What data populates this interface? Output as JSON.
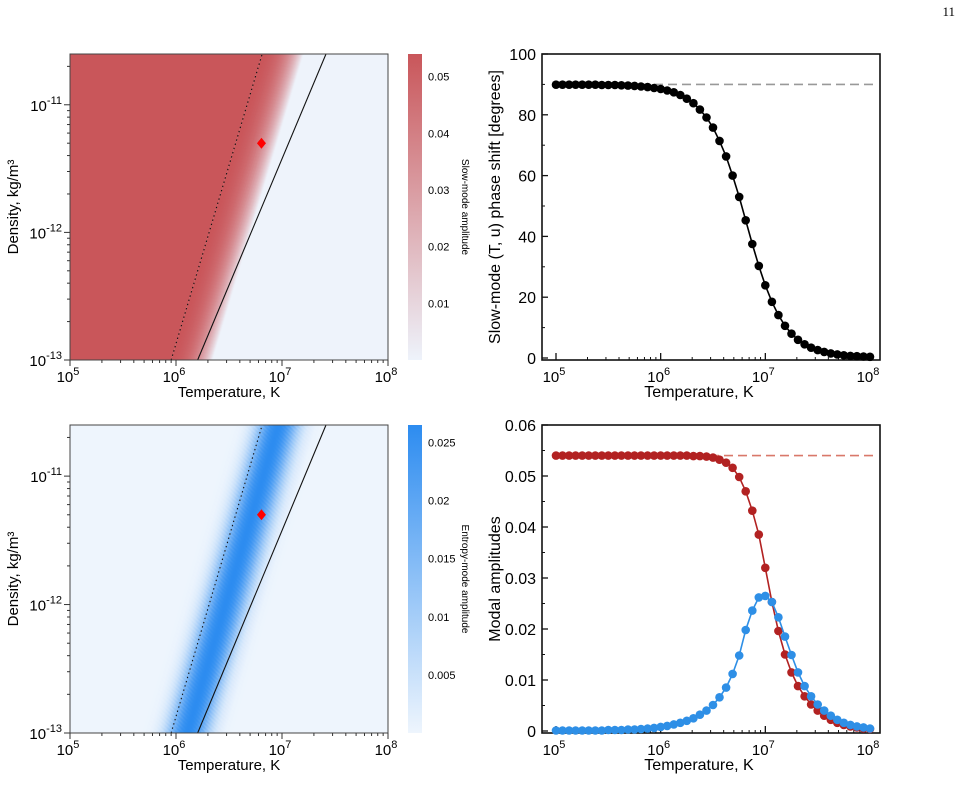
{
  "page_number": "11",
  "colors": {
    "slow_mode": "#c9565a",
    "entropy_mode": "#2d8cf0",
    "slow_series": "#b22222",
    "entropy_series": "#2e8fe6",
    "marker": "#ff0000",
    "reference_line_phase": "#999999",
    "reference_line_amp": "#d9786a"
  },
  "chart_data": [
    {
      "id": "slow-map",
      "type": "heatmap",
      "xlabel": "Temperature, K",
      "ylabel": "Density, kg/m³",
      "xscale": "log",
      "yscale": "log",
      "xlim": [
        100000,
        100000000
      ],
      "ylim": [
        1e-13,
        2.5e-11
      ],
      "xticks": [
        {
          "v": 100000,
          "base": "10",
          "exp": "5"
        },
        {
          "v": 1000000,
          "base": "10",
          "exp": "6"
        },
        {
          "v": 10000000,
          "base": "10",
          "exp": "7"
        },
        {
          "v": 100000000,
          "base": "10",
          "exp": "8"
        }
      ],
      "yticks": [
        {
          "v": 1e-13,
          "base": "10",
          "exp": "-13"
        },
        {
          "v": 1e-12,
          "base": "10",
          "exp": "-12"
        },
        {
          "v": 1e-11,
          "base": "10",
          "exp": "-11"
        }
      ],
      "colorbar": {
        "label": "Slow-mode amplitude",
        "ticks": [
          "0.01",
          "0.02",
          "0.03",
          "0.04",
          "0.05"
        ],
        "tick_values": [
          0.01,
          0.02,
          0.03,
          0.04,
          0.05
        ],
        "range": [
          0.0,
          0.054
        ]
      },
      "lines": [
        {
          "style": "dotted",
          "points": [
            [
              900000,
              1e-13
            ],
            [
              6500000,
              2.5e-11
            ]
          ]
        },
        {
          "style": "solid",
          "points": [
            [
              1600000,
              1e-13
            ],
            [
              26000000,
              2.5e-11
            ]
          ]
        }
      ],
      "marker": {
        "T": 6400000,
        "rho": 5e-12
      }
    },
    {
      "id": "phase-shift",
      "type": "line",
      "xlabel": "Temperature, K",
      "ylabel": "Slow-mode (T, u) phase shift [degrees]",
      "xscale": "log",
      "xlim": [
        100000,
        100000000
      ],
      "ylim": [
        0,
        100
      ],
      "xticks": [
        {
          "v": 100000,
          "base": "10",
          "exp": "5"
        },
        {
          "v": 1000000,
          "base": "10",
          "exp": "6"
        },
        {
          "v": 10000000,
          "base": "10",
          "exp": "7"
        },
        {
          "v": 100000000,
          "base": "10",
          "exp": "8"
        }
      ],
      "yticks": [
        "0",
        "20",
        "40",
        "60",
        "80",
        "100"
      ],
      "ytick_values": [
        0,
        20,
        40,
        60,
        80,
        100
      ],
      "reference_y": 90,
      "series": [
        {
          "log10T": [
            5.0,
            5.0625,
            5.125,
            5.1875,
            5.25,
            5.3125,
            5.375,
            5.4375,
            5.5,
            5.5625,
            5.625,
            5.6875,
            5.75,
            5.8125,
            5.875,
            5.9375,
            6.0,
            6.0625,
            6.125,
            6.1875,
            6.25,
            6.3125,
            6.375,
            6.4375,
            6.5,
            6.5625,
            6.625,
            6.6875,
            6.75,
            6.8125,
            6.875,
            6.9375,
            7.0,
            7.0625,
            7.125,
            7.1875,
            7.25,
            7.3125,
            7.375,
            7.4375,
            7.5,
            7.5625,
            7.625,
            7.6875,
            7.75,
            7.8125,
            7.875,
            7.9375,
            8.0
          ],
          "values": [
            89.9,
            89.9,
            89.9,
            89.9,
            89.9,
            89.9,
            89.9,
            89.8,
            89.8,
            89.8,
            89.7,
            89.6,
            89.5,
            89.3,
            89.1,
            88.8,
            88.5,
            88.0,
            87.4,
            86.5,
            85.3,
            83.8,
            81.7,
            79.1,
            75.8,
            71.4,
            66.3,
            60.0,
            53.0,
            45.3,
            37.5,
            30.3,
            23.9,
            18.5,
            14.1,
            10.6,
            8.0,
            6.0,
            4.5,
            3.4,
            2.6,
            2.0,
            1.5,
            1.2,
            0.9,
            0.7,
            0.6,
            0.5,
            0.4
          ]
        }
      ]
    },
    {
      "id": "entropy-map",
      "type": "heatmap",
      "xlabel": "Temperature, K",
      "ylabel": "Density, kg/m³",
      "xscale": "log",
      "yscale": "log",
      "xlim": [
        100000,
        100000000
      ],
      "ylim": [
        1e-13,
        2.5e-11
      ],
      "xticks": [
        {
          "v": 100000,
          "base": "10",
          "exp": "5"
        },
        {
          "v": 1000000,
          "base": "10",
          "exp": "6"
        },
        {
          "v": 10000000,
          "base": "10",
          "exp": "7"
        },
        {
          "v": 100000000,
          "base": "10",
          "exp": "8"
        }
      ],
      "yticks": [
        {
          "v": 1e-13,
          "base": "10",
          "exp": "-13"
        },
        {
          "v": 1e-12,
          "base": "10",
          "exp": "-12"
        },
        {
          "v": 1e-11,
          "base": "10",
          "exp": "-11"
        }
      ],
      "colorbar": {
        "label": "Entropy-mode amplitude",
        "ticks": [
          "0.005",
          "0.01",
          "0.015",
          "0.02",
          "0.025"
        ],
        "tick_values": [
          0.005,
          0.01,
          0.015,
          0.02,
          0.025
        ],
        "range": [
          0.0,
          0.0265
        ]
      },
      "lines": [
        {
          "style": "dotted",
          "points": [
            [
              900000,
              1e-13
            ],
            [
              6500000,
              2.5e-11
            ]
          ]
        },
        {
          "style": "solid",
          "points": [
            [
              1600000,
              1e-13
            ],
            [
              26000000,
              2.5e-11
            ]
          ]
        }
      ],
      "marker": {
        "T": 6400000,
        "rho": 5e-12
      }
    },
    {
      "id": "modal-amplitudes",
      "type": "line",
      "xlabel": "Temperature, K",
      "ylabel": "Modal amplitudes",
      "xscale": "log",
      "xlim": [
        100000,
        100000000
      ],
      "ylim": [
        0,
        0.06
      ],
      "xticks": [
        {
          "v": 100000,
          "base": "10",
          "exp": "5"
        },
        {
          "v": 1000000,
          "base": "10",
          "exp": "6"
        },
        {
          "v": 10000000,
          "base": "10",
          "exp": "7"
        },
        {
          "v": 100000000,
          "base": "10",
          "exp": "8"
        }
      ],
      "yticks": [
        "0",
        "0.01",
        "0.02",
        "0.03",
        "0.04",
        "0.05",
        "0.06"
      ],
      "ytick_values": [
        0,
        0.01,
        0.02,
        0.03,
        0.04,
        0.05,
        0.06
      ],
      "reference_y": 0.054,
      "series": [
        {
          "log10T": [
            5.0,
            5.0625,
            5.125,
            5.1875,
            5.25,
            5.3125,
            5.375,
            5.4375,
            5.5,
            5.5625,
            5.625,
            5.6875,
            5.75,
            5.8125,
            5.875,
            5.9375,
            6.0,
            6.0625,
            6.125,
            6.1875,
            6.25,
            6.3125,
            6.375,
            6.4375,
            6.5,
            6.5625,
            6.625,
            6.6875,
            6.75,
            6.8125,
            6.875,
            6.9375,
            7.0,
            7.0625,
            7.125,
            7.1875,
            7.25,
            7.3125,
            7.375,
            7.4375,
            7.5,
            7.5625,
            7.625,
            7.6875,
            7.75,
            7.8125,
            7.875,
            7.9375,
            8.0
          ],
          "values": [
            0.054,
            0.054,
            0.054,
            0.054,
            0.054,
            0.054,
            0.054,
            0.054,
            0.054,
            0.054,
            0.054,
            0.054,
            0.054,
            0.054,
            0.054,
            0.054,
            0.054,
            0.054,
            0.054,
            0.054,
            0.054,
            0.0539,
            0.0539,
            0.0538,
            0.0536,
            0.0532,
            0.0526,
            0.0516,
            0.0498,
            0.047,
            0.0432,
            0.0385,
            0.032,
            0.0253,
            0.0196,
            0.015,
            0.0115,
            0.0088,
            0.0068,
            0.0052,
            0.004,
            0.003,
            0.0022,
            0.0016,
            0.0012,
            0.0009,
            0.0007,
            0.0005,
            0.0004
          ]
        },
        {
          "log10T": [
            5.0,
            5.0625,
            5.125,
            5.1875,
            5.25,
            5.3125,
            5.375,
            5.4375,
            5.5,
            5.5625,
            5.625,
            5.6875,
            5.75,
            5.8125,
            5.875,
            5.9375,
            6.0,
            6.0625,
            6.125,
            6.1875,
            6.25,
            6.3125,
            6.375,
            6.4375,
            6.5,
            6.5625,
            6.625,
            6.6875,
            6.75,
            6.8125,
            6.875,
            6.9375,
            7.0,
            7.0625,
            7.125,
            7.1875,
            7.25,
            7.3125,
            7.375,
            7.4375,
            7.5,
            7.5625,
            7.625,
            7.6875,
            7.75,
            7.8125,
            7.875,
            7.9375,
            8.0
          ],
          "values": [
            0.0001,
            0.0001,
            0.0001,
            0.0001,
            0.0001,
            0.0001,
            0.0001,
            0.0001,
            0.0002,
            0.0002,
            0.0002,
            0.0003,
            0.0003,
            0.0004,
            0.0005,
            0.0006,
            0.0008,
            0.001,
            0.0013,
            0.0016,
            0.002,
            0.0025,
            0.0032,
            0.004,
            0.0051,
            0.0066,
            0.0085,
            0.0112,
            0.0148,
            0.0198,
            0.0236,
            0.0262,
            0.0265,
            0.0253,
            0.0223,
            0.0185,
            0.0149,
            0.0115,
            0.0088,
            0.0068,
            0.0052,
            0.004,
            0.003,
            0.0022,
            0.0016,
            0.0012,
            0.0009,
            0.0007,
            0.0005
          ]
        }
      ]
    }
  ]
}
